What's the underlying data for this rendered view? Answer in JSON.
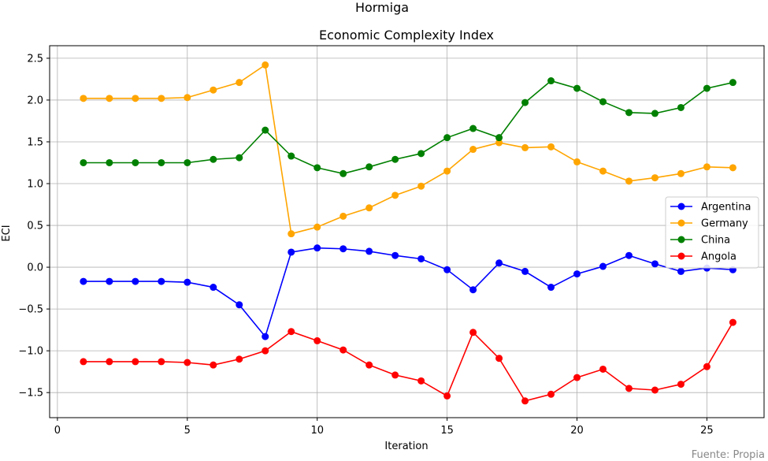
{
  "figure": {
    "suptitle": "Hormiga",
    "source_note": "Fuente: Propia"
  },
  "chart_data": {
    "type": "line",
    "title": "Economic Complexity Index",
    "xlabel": "Iteration",
    "ylabel": "ECI",
    "xlim": [
      -0.3,
      27.2
    ],
    "ylim": [
      -1.8,
      2.65
    ],
    "xticks": [
      0,
      5,
      10,
      15,
      20,
      25
    ],
    "yticks": [
      -1.5,
      -1.0,
      -0.5,
      0.0,
      0.5,
      1.0,
      1.5,
      2.0,
      2.5
    ],
    "ytick_labels": [
      "−1.5",
      "−1.0",
      "−0.5",
      "0.0",
      "0.5",
      "1.0",
      "1.5",
      "2.0",
      "2.5"
    ],
    "grid": true,
    "legend_position": "center-right",
    "x": [
      1,
      2,
      3,
      4,
      5,
      6,
      7,
      8,
      9,
      10,
      11,
      12,
      13,
      14,
      15,
      16,
      17,
      18,
      19,
      20,
      21,
      22,
      23,
      24,
      25,
      26
    ],
    "series": [
      {
        "name": "Argentina",
        "color": "#0000ff",
        "values": [
          -0.17,
          -0.17,
          -0.17,
          -0.17,
          -0.18,
          -0.24,
          -0.45,
          -0.83,
          0.18,
          0.23,
          0.22,
          0.19,
          0.14,
          0.1,
          -0.03,
          -0.27,
          0.05,
          -0.05,
          -0.24,
          -0.08,
          0.01,
          0.14,
          0.04,
          -0.05,
          -0.01,
          -0.03
        ]
      },
      {
        "name": "Germany",
        "color": "#ffa500",
        "values": [
          2.02,
          2.02,
          2.02,
          2.02,
          2.03,
          2.12,
          2.21,
          2.42,
          0.4,
          0.48,
          0.61,
          0.71,
          0.86,
          0.97,
          1.15,
          1.41,
          1.49,
          1.43,
          1.44,
          1.26,
          1.15,
          1.03,
          1.07,
          1.12,
          1.2,
          1.19
        ]
      },
      {
        "name": "China",
        "color": "#008000",
        "values": [
          1.25,
          1.25,
          1.25,
          1.25,
          1.25,
          1.29,
          1.31,
          1.64,
          1.33,
          1.19,
          1.12,
          1.2,
          1.29,
          1.36,
          1.55,
          1.66,
          1.55,
          1.97,
          2.23,
          2.14,
          1.98,
          1.85,
          1.84,
          1.91,
          2.14,
          2.21
        ]
      },
      {
        "name": "Angola",
        "color": "#ff0000",
        "values": [
          -1.13,
          -1.13,
          -1.13,
          -1.13,
          -1.14,
          -1.17,
          -1.1,
          -1.0,
          -0.77,
          -0.88,
          -0.99,
          -1.17,
          -1.29,
          -1.36,
          -1.54,
          -0.78,
          -1.09,
          -1.6,
          -1.52,
          -1.32,
          -1.22,
          -1.45,
          -1.47,
          -1.4,
          -1.19,
          -0.66
        ]
      }
    ]
  }
}
